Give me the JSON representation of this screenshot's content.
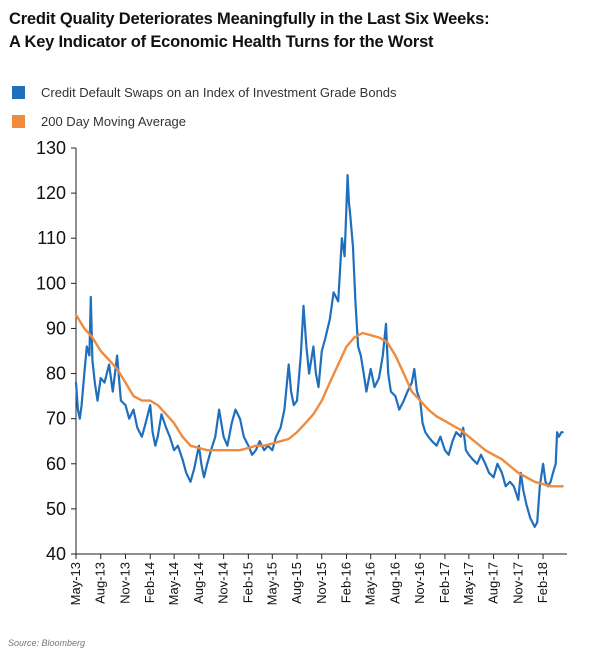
{
  "chart_data": {
    "type": "line",
    "title_line1": "Credit Quality Deteriorates Meaningfully in the Last Six Weeks:",
    "title_line2": "A Key Indicator of Economic Health Turns for the Worst",
    "source": "Source: Bloomberg",
    "legend_placement": "top-left",
    "grid": false,
    "ylim": [
      40,
      130
    ],
    "y_ticks": [
      130,
      120,
      110,
      100,
      90,
      80,
      70,
      60,
      50,
      40
    ],
    "xlim": [
      "2013-05",
      "2018-05"
    ],
    "x_tick_labels": [
      "May-13",
      "Aug-13",
      "Nov-13",
      "Feb-14",
      "May-14",
      "Aug-14",
      "Nov-14",
      "Feb-15",
      "May-15",
      "Aug-15",
      "Nov-15",
      "Feb-16",
      "May-16",
      "Aug-16",
      "Nov-16",
      "Feb-17",
      "May-17",
      "Aug-17",
      "Nov-17",
      "Feb-18"
    ],
    "series": [
      {
        "name": "Credit Default Swaps on an Index of Investment Grade Bonds",
        "color": "#1f6fbd",
        "points": [
          [
            "2013-05-01",
            78
          ],
          [
            "2013-05-08",
            72
          ],
          [
            "2013-05-15",
            70
          ],
          [
            "2013-05-22",
            73
          ],
          [
            "2013-06-01",
            80
          ],
          [
            "2013-06-10",
            86
          ],
          [
            "2013-06-20",
            84
          ],
          [
            "2013-06-25",
            97
          ],
          [
            "2013-07-01",
            83
          ],
          [
            "2013-07-10",
            78
          ],
          [
            "2013-07-20",
            74
          ],
          [
            "2013-08-01",
            79
          ],
          [
            "2013-08-15",
            78
          ],
          [
            "2013-09-01",
            82
          ],
          [
            "2013-09-15",
            76
          ],
          [
            "2013-10-01",
            84
          ],
          [
            "2013-10-15",
            74
          ],
          [
            "2013-11-01",
            73
          ],
          [
            "2013-11-15",
            70
          ],
          [
            "2013-12-01",
            72
          ],
          [
            "2013-12-15",
            68
          ],
          [
            "2014-01-01",
            66
          ],
          [
            "2014-01-15",
            69
          ],
          [
            "2014-02-01",
            73
          ],
          [
            "2014-02-10",
            67
          ],
          [
            "2014-02-20",
            64
          ],
          [
            "2014-03-01",
            66
          ],
          [
            "2014-03-15",
            71
          ],
          [
            "2014-04-01",
            68
          ],
          [
            "2014-04-15",
            66
          ],
          [
            "2014-05-01",
            63
          ],
          [
            "2014-05-15",
            64
          ],
          [
            "2014-06-01",
            61
          ],
          [
            "2014-06-15",
            58
          ],
          [
            "2014-07-01",
            56
          ],
          [
            "2014-07-15",
            59
          ],
          [
            "2014-08-01",
            64
          ],
          [
            "2014-08-10",
            60
          ],
          [
            "2014-08-20",
            57
          ],
          [
            "2014-09-01",
            60
          ],
          [
            "2014-09-15",
            63
          ],
          [
            "2014-10-01",
            66
          ],
          [
            "2014-10-15",
            72
          ],
          [
            "2014-11-01",
            66
          ],
          [
            "2014-11-15",
            64
          ],
          [
            "2014-12-01",
            69
          ],
          [
            "2014-12-15",
            72
          ],
          [
            "2015-01-01",
            70
          ],
          [
            "2015-01-15",
            66
          ],
          [
            "2015-02-01",
            64
          ],
          [
            "2015-02-15",
            62
          ],
          [
            "2015-03-01",
            63
          ],
          [
            "2015-03-15",
            65
          ],
          [
            "2015-04-01",
            63
          ],
          [
            "2015-04-15",
            64
          ],
          [
            "2015-05-01",
            63
          ],
          [
            "2015-05-15",
            66
          ],
          [
            "2015-06-01",
            68
          ],
          [
            "2015-06-15",
            72
          ],
          [
            "2015-07-01",
            82
          ],
          [
            "2015-07-10",
            76
          ],
          [
            "2015-07-20",
            73
          ],
          [
            "2015-08-01",
            74
          ],
          [
            "2015-08-15",
            84
          ],
          [
            "2015-08-25",
            95
          ],
          [
            "2015-09-05",
            86
          ],
          [
            "2015-09-15",
            80
          ],
          [
            "2015-10-01",
            86
          ],
          [
            "2015-10-10",
            80
          ],
          [
            "2015-10-20",
            77
          ],
          [
            "2015-11-01",
            85
          ],
          [
            "2015-11-15",
            88
          ],
          [
            "2015-12-01",
            92
          ],
          [
            "2015-12-15",
            98
          ],
          [
            "2016-01-01",
            96
          ],
          [
            "2016-01-15",
            110
          ],
          [
            "2016-01-25",
            106
          ],
          [
            "2016-02-05",
            124
          ],
          [
            "2016-02-10",
            118
          ],
          [
            "2016-02-15",
            115
          ],
          [
            "2016-02-25",
            108
          ],
          [
            "2016-03-05",
            96
          ],
          [
            "2016-03-15",
            86
          ],
          [
            "2016-03-25",
            84
          ],
          [
            "2016-04-05",
            80
          ],
          [
            "2016-04-15",
            76
          ],
          [
            "2016-05-01",
            81
          ],
          [
            "2016-05-15",
            77
          ],
          [
            "2016-06-01",
            79
          ],
          [
            "2016-06-15",
            84
          ],
          [
            "2016-06-27",
            91
          ],
          [
            "2016-07-05",
            80
          ],
          [
            "2016-07-15",
            76
          ],
          [
            "2016-08-01",
            75
          ],
          [
            "2016-08-15",
            72
          ],
          [
            "2016-09-01",
            74
          ],
          [
            "2016-09-15",
            76
          ],
          [
            "2016-10-01",
            78
          ],
          [
            "2016-10-10",
            81
          ],
          [
            "2016-10-20",
            76
          ],
          [
            "2016-11-01",
            74
          ],
          [
            "2016-11-10",
            69
          ],
          [
            "2016-11-20",
            67
          ],
          [
            "2016-12-01",
            66
          ],
          [
            "2016-12-15",
            65
          ],
          [
            "2017-01-01",
            64
          ],
          [
            "2017-01-15",
            66
          ],
          [
            "2017-02-01",
            63
          ],
          [
            "2017-02-15",
            62
          ],
          [
            "2017-03-01",
            65
          ],
          [
            "2017-03-15",
            67
          ],
          [
            "2017-04-01",
            66
          ],
          [
            "2017-04-10",
            68
          ],
          [
            "2017-04-20",
            63
          ],
          [
            "2017-05-01",
            62
          ],
          [
            "2017-05-15",
            61
          ],
          [
            "2017-06-01",
            60
          ],
          [
            "2017-06-15",
            62
          ],
          [
            "2017-07-01",
            60
          ],
          [
            "2017-07-15",
            58
          ],
          [
            "2017-08-01",
            57
          ],
          [
            "2017-08-15",
            60
          ],
          [
            "2017-09-01",
            58
          ],
          [
            "2017-09-15",
            55
          ],
          [
            "2017-10-01",
            56
          ],
          [
            "2017-10-15",
            55
          ],
          [
            "2017-11-01",
            52
          ],
          [
            "2017-11-10",
            58
          ],
          [
            "2017-11-20",
            54
          ],
          [
            "2017-12-01",
            51
          ],
          [
            "2017-12-15",
            48
          ],
          [
            "2018-01-01",
            46
          ],
          [
            "2018-01-10",
            47
          ],
          [
            "2018-01-20",
            55
          ],
          [
            "2018-02-01",
            60
          ],
          [
            "2018-02-10",
            56
          ],
          [
            "2018-02-20",
            55
          ],
          [
            "2018-03-01",
            56
          ],
          [
            "2018-03-10",
            58
          ],
          [
            "2018-03-20",
            60
          ],
          [
            "2018-03-25",
            67
          ],
          [
            "2018-04-01",
            66
          ],
          [
            "2018-04-10",
            67
          ],
          [
            "2018-04-15",
            67
          ]
        ]
      },
      {
        "name": "200 Day Moving Average",
        "color": "#f08a3c",
        "points": [
          [
            "2013-05-01",
            93
          ],
          [
            "2013-06-01",
            90
          ],
          [
            "2013-07-01",
            88
          ],
          [
            "2013-08-01",
            85
          ],
          [
            "2013-09-01",
            83
          ],
          [
            "2013-10-01",
            81
          ],
          [
            "2013-11-01",
            78
          ],
          [
            "2013-12-01",
            75
          ],
          [
            "2014-01-01",
            74
          ],
          [
            "2014-02-01",
            74
          ],
          [
            "2014-03-01",
            73
          ],
          [
            "2014-04-01",
            71
          ],
          [
            "2014-05-01",
            69
          ],
          [
            "2014-06-01",
            66
          ],
          [
            "2014-07-01",
            64
          ],
          [
            "2014-08-01",
            63.5
          ],
          [
            "2014-09-01",
            63
          ],
          [
            "2014-10-01",
            63
          ],
          [
            "2014-11-01",
            63
          ],
          [
            "2014-12-01",
            63
          ],
          [
            "2015-01-01",
            63
          ],
          [
            "2015-02-01",
            63.5
          ],
          [
            "2015-03-01",
            64
          ],
          [
            "2015-04-01",
            64
          ],
          [
            "2015-05-01",
            64.5
          ],
          [
            "2015-06-01",
            65
          ],
          [
            "2015-07-01",
            65.5
          ],
          [
            "2015-08-01",
            67
          ],
          [
            "2015-09-01",
            69
          ],
          [
            "2015-10-01",
            71
          ],
          [
            "2015-11-01",
            74
          ],
          [
            "2015-12-01",
            78
          ],
          [
            "2016-01-01",
            82
          ],
          [
            "2016-02-01",
            86
          ],
          [
            "2016-03-01",
            88
          ],
          [
            "2016-04-01",
            89
          ],
          [
            "2016-05-01",
            88.5
          ],
          [
            "2016-06-01",
            88
          ],
          [
            "2016-07-01",
            87
          ],
          [
            "2016-08-01",
            84
          ],
          [
            "2016-09-01",
            80
          ],
          [
            "2016-10-01",
            76
          ],
          [
            "2016-11-01",
            74
          ],
          [
            "2016-12-01",
            72
          ],
          [
            "2017-01-01",
            70.5
          ],
          [
            "2017-02-01",
            69.5
          ],
          [
            "2017-03-01",
            68.5
          ],
          [
            "2017-04-01",
            67.5
          ],
          [
            "2017-05-01",
            66
          ],
          [
            "2017-06-01",
            64.5
          ],
          [
            "2017-07-01",
            63
          ],
          [
            "2017-08-01",
            62
          ],
          [
            "2017-09-01",
            61
          ],
          [
            "2017-10-01",
            59.5
          ],
          [
            "2017-11-01",
            58
          ],
          [
            "2017-12-01",
            57
          ],
          [
            "2018-01-01",
            56
          ],
          [
            "2018-02-01",
            55.5
          ],
          [
            "2018-03-01",
            55
          ],
          [
            "2018-04-15",
            55
          ]
        ]
      }
    ]
  }
}
